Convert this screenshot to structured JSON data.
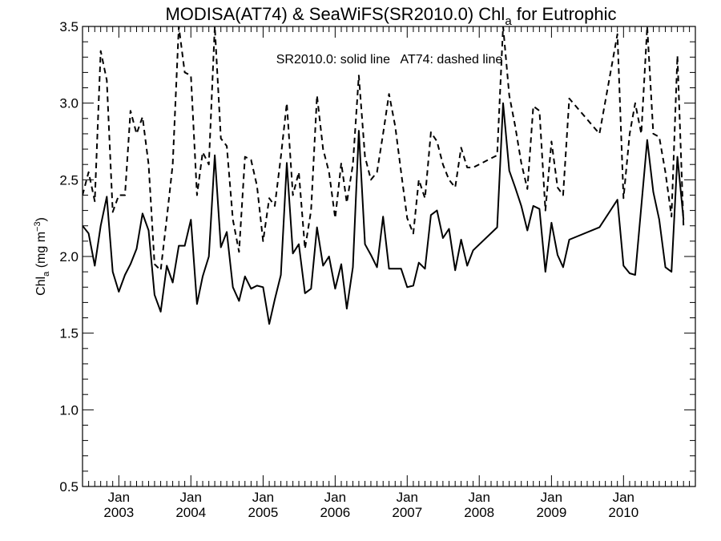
{
  "chart_data": {
    "type": "line",
    "title_main": "MODISA(AT74) & SeaWiFS(SR2010.0)  Chl",
    "title_sub": "a",
    "title_end": " for Eutrophic",
    "annotation": "SR2010.0: solid line   AT74: dashed line",
    "ylabel_main": "Chl",
    "ylabel_sub": "a",
    "ylabel_unit": " (mg m",
    "ylabel_sup": "−3",
    "ylabel_close": ")",
    "ylim": [
      0.5,
      3.5
    ],
    "yticks": [
      "0.5",
      "1.0",
      "1.5",
      "2.0",
      "2.5",
      "3.0",
      "3.5"
    ],
    "xlim": [
      "2002-07-01",
      "2010-12-31"
    ],
    "x_major_ticks": [
      {
        "month": "Jan",
        "year": "2003",
        "date": "2003-01-01"
      },
      {
        "month": "Jan",
        "year": "2004",
        "date": "2004-01-01"
      },
      {
        "month": "Jan",
        "year": "2005",
        "date": "2005-01-01"
      },
      {
        "month": "Jan",
        "year": "2006",
        "date": "2006-01-01"
      },
      {
        "month": "Jan",
        "year": "2007",
        "date": "2007-01-01"
      },
      {
        "month": "Jan",
        "year": "2008",
        "date": "2008-01-01"
      },
      {
        "month": "Jan",
        "year": "2009",
        "date": "2009-01-01"
      },
      {
        "month": "Jan",
        "year": "2010",
        "date": "2010-01-01"
      }
    ],
    "series": [
      {
        "name": "SR2010.0",
        "style": "solid",
        "color": "#000000",
        "points": [
          [
            "2002-07-01",
            2.2
          ],
          [
            "2002-08-01",
            2.15
          ],
          [
            "2002-09-01",
            1.94
          ],
          [
            "2002-10-01",
            2.2
          ],
          [
            "2002-11-01",
            2.39
          ],
          [
            "2002-12-01",
            1.9
          ],
          [
            "2003-01-01",
            1.77
          ],
          [
            "2003-02-01",
            1.88
          ],
          [
            "2003-03-01",
            1.95
          ],
          [
            "2003-04-01",
            2.05
          ],
          [
            "2003-05-01",
            2.28
          ],
          [
            "2003-06-01",
            2.17
          ],
          [
            "2003-07-01",
            1.75
          ],
          [
            "2003-08-01",
            1.64
          ],
          [
            "2003-09-01",
            1.94
          ],
          [
            "2003-10-01",
            1.83
          ],
          [
            "2003-11-01",
            2.07
          ],
          [
            "2003-12-01",
            2.07
          ],
          [
            "2004-01-01",
            2.24
          ],
          [
            "2004-02-01",
            1.69
          ],
          [
            "2004-03-01",
            1.87
          ],
          [
            "2004-04-01",
            2.0
          ],
          [
            "2004-05-01",
            2.66
          ],
          [
            "2004-06-01",
            2.06
          ],
          [
            "2004-07-01",
            2.16
          ],
          [
            "2004-08-01",
            1.8
          ],
          [
            "2004-09-01",
            1.71
          ],
          [
            "2004-10-01",
            1.87
          ],
          [
            "2004-11-01",
            1.79
          ],
          [
            "2004-12-01",
            1.81
          ],
          [
            "2005-01-01",
            1.8
          ],
          [
            "2005-02-01",
            1.56
          ],
          [
            "2005-03-01",
            1.72
          ],
          [
            "2005-04-01",
            1.88
          ],
          [
            "2005-05-01",
            2.61
          ],
          [
            "2005-06-01",
            2.02
          ],
          [
            "2005-07-01",
            2.08
          ],
          [
            "2005-08-01",
            1.76
          ],
          [
            "2005-09-01",
            1.79
          ],
          [
            "2005-10-01",
            2.19
          ],
          [
            "2005-11-01",
            1.94
          ],
          [
            "2005-12-01",
            2.0
          ],
          [
            "2006-01-01",
            1.79
          ],
          [
            "2006-02-01",
            1.95
          ],
          [
            "2006-03-01",
            1.66
          ],
          [
            "2006-04-01",
            1.93
          ],
          [
            "2006-05-01",
            2.82
          ],
          [
            "2006-06-01",
            2.08
          ],
          [
            "2006-07-01",
            2.01
          ],
          [
            "2006-08-01",
            1.93
          ],
          [
            "2006-09-01",
            2.26
          ],
          [
            "2006-10-01",
            1.92
          ],
          [
            "2006-11-01",
            1.92
          ],
          [
            "2006-12-01",
            1.92
          ],
          [
            "2007-01-01",
            1.8
          ],
          [
            "2007-02-01",
            1.81
          ],
          [
            "2007-03-01",
            1.96
          ],
          [
            "2007-04-01",
            1.92
          ],
          [
            "2007-05-01",
            2.27
          ],
          [
            "2007-06-01",
            2.3
          ],
          [
            "2007-07-01",
            2.12
          ],
          [
            "2007-08-01",
            2.18
          ],
          [
            "2007-09-01",
            1.91
          ],
          [
            "2007-10-01",
            2.11
          ],
          [
            "2007-11-01",
            1.94
          ],
          [
            "2007-12-01",
            2.04
          ],
          [
            "2008-04-01",
            2.19
          ],
          [
            "2008-05-01",
            3.0
          ],
          [
            "2008-06-01",
            2.56
          ],
          [
            "2008-07-01",
            2.45
          ],
          [
            "2008-08-01",
            2.33
          ],
          [
            "2008-09-01",
            2.17
          ],
          [
            "2008-10-01",
            2.33
          ],
          [
            "2008-11-01",
            2.31
          ],
          [
            "2008-12-01",
            1.9
          ],
          [
            "2009-01-01",
            2.22
          ],
          [
            "2009-02-01",
            2.01
          ],
          [
            "2009-03-01",
            1.93
          ],
          [
            "2009-04-01",
            2.11
          ],
          [
            "2009-09-01",
            2.19
          ],
          [
            "2009-12-01",
            2.37
          ],
          [
            "2010-01-01",
            1.94
          ],
          [
            "2010-02-01",
            1.89
          ],
          [
            "2010-03-01",
            1.88
          ],
          [
            "2010-05-01",
            2.76
          ],
          [
            "2010-06-01",
            2.42
          ],
          [
            "2010-07-01",
            2.24
          ],
          [
            "2010-08-01",
            1.93
          ],
          [
            "2010-09-01",
            1.9
          ],
          [
            "2010-10-01",
            2.65
          ],
          [
            "2010-11-01",
            2.24
          ]
        ]
      },
      {
        "name": "AT74",
        "style": "dashed",
        "color": "#000000",
        "points": [
          [
            "2002-07-01",
            2.4
          ],
          [
            "2002-08-01",
            2.55
          ],
          [
            "2002-09-01",
            2.36
          ],
          [
            "2002-10-01",
            3.34
          ],
          [
            "2002-11-01",
            3.15
          ],
          [
            "2002-12-01",
            2.29
          ],
          [
            "2003-01-01",
            2.4
          ],
          [
            "2003-02-01",
            2.4
          ],
          [
            "2003-03-01",
            2.95
          ],
          [
            "2003-04-01",
            2.8
          ],
          [
            "2003-05-01",
            2.91
          ],
          [
            "2003-06-01",
            2.6
          ],
          [
            "2003-07-01",
            1.95
          ],
          [
            "2003-08-01",
            1.91
          ],
          [
            "2003-09-01",
            2.25
          ],
          [
            "2003-10-01",
            2.6
          ],
          [
            "2003-11-01",
            3.5
          ],
          [
            "2003-12-01",
            3.2
          ],
          [
            "2004-01-01",
            3.18
          ],
          [
            "2004-02-01",
            2.4
          ],
          [
            "2004-03-01",
            2.68
          ],
          [
            "2004-04-01",
            2.6
          ],
          [
            "2004-05-01",
            3.5
          ],
          [
            "2004-06-01",
            2.77
          ],
          [
            "2004-07-01",
            2.72
          ],
          [
            "2004-08-01",
            2.24
          ],
          [
            "2004-09-01",
            2.03
          ],
          [
            "2004-10-01",
            2.65
          ],
          [
            "2004-11-01",
            2.63
          ],
          [
            "2004-12-01",
            2.46
          ],
          [
            "2005-01-01",
            2.1
          ],
          [
            "2005-02-01",
            2.38
          ],
          [
            "2005-03-01",
            2.33
          ],
          [
            "2005-04-01",
            2.65
          ],
          [
            "2005-05-01",
            3.0
          ],
          [
            "2005-06-01",
            2.4
          ],
          [
            "2005-07-01",
            2.55
          ],
          [
            "2005-08-01",
            2.05
          ],
          [
            "2005-09-01",
            2.3
          ],
          [
            "2005-10-01",
            3.05
          ],
          [
            "2005-11-01",
            2.7
          ],
          [
            "2005-12-01",
            2.55
          ],
          [
            "2006-01-01",
            2.25
          ],
          [
            "2006-02-01",
            2.61
          ],
          [
            "2006-03-01",
            2.35
          ],
          [
            "2006-04-01",
            2.6
          ],
          [
            "2006-05-01",
            3.18
          ],
          [
            "2006-06-01",
            2.65
          ],
          [
            "2006-07-01",
            2.5
          ],
          [
            "2006-08-01",
            2.55
          ],
          [
            "2006-09-01",
            2.8
          ],
          [
            "2006-10-01",
            3.06
          ],
          [
            "2006-11-01",
            2.85
          ],
          [
            "2006-12-01",
            2.55
          ],
          [
            "2007-01-01",
            2.25
          ],
          [
            "2007-02-01",
            2.15
          ],
          [
            "2007-03-01",
            2.5
          ],
          [
            "2007-04-01",
            2.38
          ],
          [
            "2007-05-01",
            2.81
          ],
          [
            "2007-06-01",
            2.75
          ],
          [
            "2007-07-01",
            2.6
          ],
          [
            "2007-08-01",
            2.5
          ],
          [
            "2007-09-01",
            2.45
          ],
          [
            "2007-10-01",
            2.71
          ],
          [
            "2007-11-01",
            2.58
          ],
          [
            "2007-12-01",
            2.58
          ],
          [
            "2008-04-01",
            2.66
          ],
          [
            "2008-05-01",
            3.5
          ],
          [
            "2008-06-01",
            3.05
          ],
          [
            "2008-07-01",
            2.85
          ],
          [
            "2008-08-01",
            2.61
          ],
          [
            "2008-09-01",
            2.44
          ],
          [
            "2008-10-01",
            2.98
          ],
          [
            "2008-11-01",
            2.95
          ],
          [
            "2008-12-01",
            2.3
          ],
          [
            "2009-01-01",
            2.75
          ],
          [
            "2009-02-01",
            2.45
          ],
          [
            "2009-03-01",
            2.4
          ],
          [
            "2009-04-01",
            3.03
          ],
          [
            "2009-09-01",
            2.8
          ],
          [
            "2009-12-01",
            3.45
          ],
          [
            "2010-01-01",
            2.38
          ],
          [
            "2010-02-01",
            2.8
          ],
          [
            "2010-03-01",
            3.0
          ],
          [
            "2010-04-01",
            2.8
          ],
          [
            "2010-05-01",
            3.5
          ],
          [
            "2010-06-01",
            2.8
          ],
          [
            "2010-07-01",
            2.78
          ],
          [
            "2010-08-01",
            2.55
          ],
          [
            "2010-09-01",
            2.26
          ],
          [
            "2010-10-01",
            3.31
          ],
          [
            "2010-11-01",
            2.2
          ]
        ]
      }
    ]
  }
}
